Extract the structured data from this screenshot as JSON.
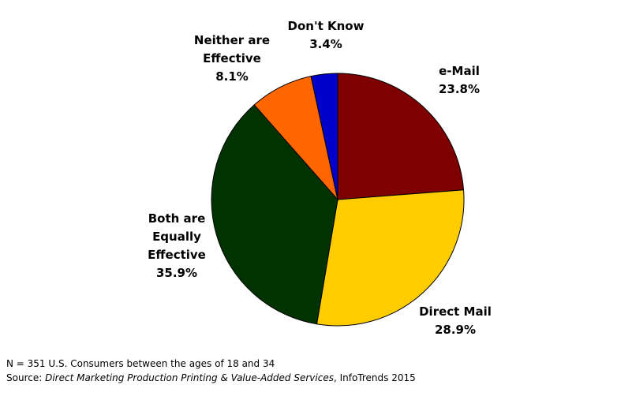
{
  "chart_data": {
    "type": "pie",
    "categories": [
      "e-Mail",
      "Direct Mail",
      "Both are Equally Effective",
      "Neither are Effective",
      "Don't Know"
    ],
    "values": [
      23.8,
      28.9,
      35.9,
      8.1,
      3.4
    ],
    "value_labels": [
      "23.8%",
      "28.9%",
      "35.9%",
      "8.1%",
      "3.4%"
    ],
    "colors": [
      "#7f0000",
      "#ffcc00",
      "#003300",
      "#ff6600",
      "#0000cc"
    ],
    "note": "N = 351 U.S. Consumers between the ages of 18 and 34",
    "source": {
      "prefix": "Source:",
      "title": "Direct Marketing Production Printing & Value-Added Services",
      "suffix": ", InfoTrends 2015"
    }
  }
}
